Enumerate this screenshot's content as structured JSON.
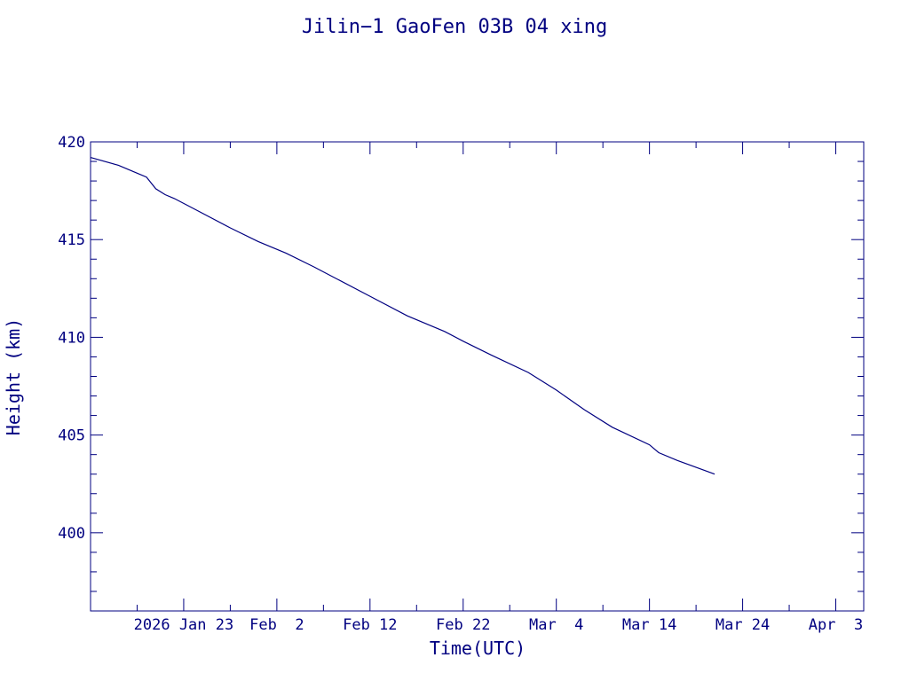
{
  "chart_data": {
    "type": "line",
    "title": "Jilin−1 GaoFen 03B 04 xing",
    "xlabel": "Time(UTC)",
    "ylabel": "Height (km)",
    "xlim": [
      "2026-01-13",
      "2026-04-06"
    ],
    "ylim": [
      396,
      420
    ],
    "grid": false,
    "color": "#000080",
    "x_ticks": [
      {
        "label": "2026 Jan 23",
        "date": "2026-01-23"
      },
      {
        "label": "Feb  2",
        "date": "2026-02-02"
      },
      {
        "label": "Feb 12",
        "date": "2026-02-12"
      },
      {
        "label": "Feb 22",
        "date": "2026-02-22"
      },
      {
        "label": "Mar  4",
        "date": "2026-03-04"
      },
      {
        "label": "Mar 14",
        "date": "2026-03-14"
      },
      {
        "label": "Mar 24",
        "date": "2026-03-24"
      },
      {
        "label": "Apr  3",
        "date": "2026-04-03"
      }
    ],
    "y_ticks": [
      400,
      405,
      410,
      415,
      420
    ],
    "series": [
      {
        "x": [
          "2026-01-13",
          "2026-01-16",
          "2026-01-18",
          "2026-01-19",
          "2026-01-20",
          "2026-01-21",
          "2026-01-22",
          "2026-01-24",
          "2026-01-28",
          "2026-01-31",
          "2026-02-03",
          "2026-02-06",
          "2026-02-08",
          "2026-02-12",
          "2026-02-16",
          "2026-02-20",
          "2026-02-22",
          "2026-02-25",
          "2026-03-01",
          "2026-03-04",
          "2026-03-07",
          "2026-03-10",
          "2026-03-14",
          "2026-03-15",
          "2026-03-17",
          "2026-03-21"
        ],
        "y": [
          419.2,
          418.8,
          418.4,
          418.2,
          417.6,
          417.3,
          417.1,
          416.6,
          415.6,
          414.9,
          414.3,
          413.6,
          413.1,
          412.1,
          411.1,
          410.3,
          409.8,
          409.1,
          408.2,
          407.3,
          406.3,
          405.4,
          404.5,
          404.1,
          403.7,
          403.0
        ]
      }
    ]
  }
}
